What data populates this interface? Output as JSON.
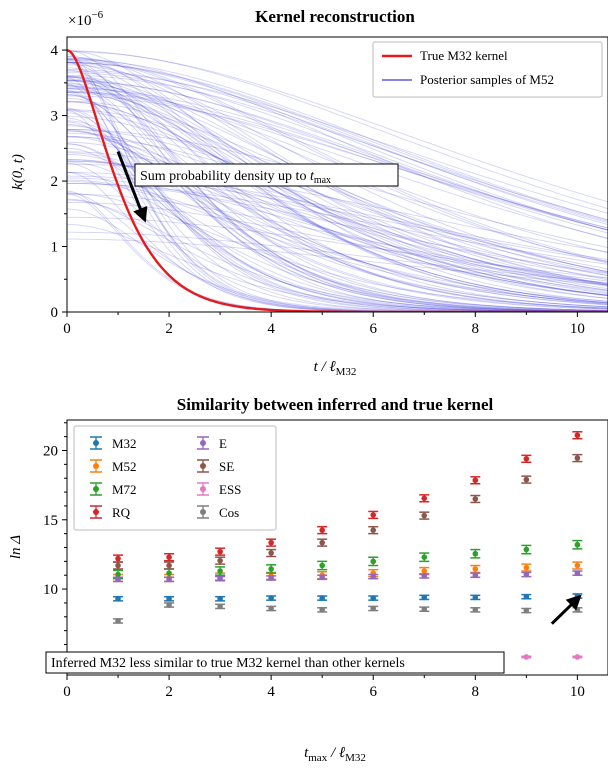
{
  "colors": {
    "true_kernel": "#e41a1c",
    "posterior": "#3b3bdc",
    "M32": "#1f77b4",
    "M52": "#ff7f0e",
    "M72": "#2ca02c",
    "RQ": "#d62728",
    "E": "#9467bd",
    "SE": "#8c564b",
    "ESS": "#e377c2",
    "Cos": "#7f7f7f"
  },
  "chart_data": [
    {
      "type": "line",
      "title": "Kernel reconstruction",
      "xlabel": "t / ℓ",
      "xlabel_sub": "M32",
      "ylabel": "k(0, t)",
      "y_multiplier": "×10",
      "y_multiplier_exp": "−6",
      "xlim": [
        0,
        10.6
      ],
      "ylim": [
        0,
        4.2
      ],
      "x_ticks": [
        "0",
        "2",
        "4",
        "6",
        "8",
        "10"
      ],
      "y_ticks": [
        "0",
        "1",
        "2",
        "3",
        "4"
      ],
      "legend_position": "top-right",
      "series": [
        {
          "name": "True M32 kernel",
          "kind": "matern32",
          "amplitude": 4.0,
          "lengthscale": 1.0
        },
        {
          "name": "Posterior samples of M52",
          "kind": "matern52_samples",
          "count": 120,
          "amplitude_range": [
            1.1,
            4.0
          ],
          "lengthscale_range": [
            1.3,
            9.0
          ]
        }
      ],
      "annotation": {
        "text": "Sum probability density up to ",
        "text_italic": "t",
        "text_sub": "max",
        "arrow_from": [
          1.0,
          2.45
        ],
        "arrow_to": [
          1.5,
          1.45
        ]
      }
    },
    {
      "type": "scatter",
      "title": "Similarity between inferred and true kernel",
      "xlabel": "t",
      "xlabel_sub1": "max",
      "xlabel_mid": " / ℓ",
      "xlabel_sub2": "M32",
      "ylabel": "ln Δ",
      "xlim": [
        0,
        10.6
      ],
      "ylim": [
        3.8,
        22.2
      ],
      "x_ticks": [
        "0",
        "2",
        "4",
        "6",
        "8",
        "10"
      ],
      "y_ticks": [
        "5",
        "10",
        "15",
        "20"
      ],
      "legend_position": "top-left",
      "x": [
        1,
        2,
        3,
        4,
        5,
        6,
        7,
        8,
        9,
        10
      ],
      "series": [
        {
          "name": "M32",
          "values": [
            9.3,
            9.3,
            9.3,
            9.35,
            9.35,
            9.35,
            9.4,
            9.4,
            9.45,
            9.5
          ],
          "err": 0.15
        },
        {
          "name": "M52",
          "values": [
            10.8,
            10.8,
            10.9,
            10.95,
            11.0,
            11.15,
            11.3,
            11.45,
            11.55,
            11.7
          ],
          "err": 0.25
        },
        {
          "name": "M72",
          "values": [
            11.05,
            11.15,
            11.3,
            11.45,
            11.7,
            12.0,
            12.3,
            12.55,
            12.85,
            13.2
          ],
          "err": 0.3
        },
        {
          "name": "RQ",
          "values": [
            12.2,
            12.3,
            12.7,
            13.35,
            14.25,
            15.35,
            16.55,
            17.85,
            19.4,
            21.1
          ],
          "err": 0.25
        },
        {
          "name": "E",
          "values": [
            10.7,
            10.7,
            10.75,
            10.8,
            10.85,
            10.9,
            10.95,
            11.0,
            11.05,
            11.15
          ],
          "err": 0.15
        },
        {
          "name": "SE",
          "values": [
            11.7,
            11.7,
            12.05,
            12.6,
            13.35,
            14.25,
            15.3,
            16.5,
            17.9,
            19.45
          ],
          "err": 0.25
        },
        {
          "name": "ESS",
          "values": [
            5.1,
            5.1,
            5.1,
            5.1,
            5.1,
            5.1,
            5.1,
            5.1,
            5.1,
            5.1
          ],
          "err": 0.05
        },
        {
          "name": "Cos",
          "values": [
            7.7,
            8.85,
            8.75,
            8.6,
            8.5,
            8.6,
            8.55,
            8.5,
            8.45,
            8.5
          ],
          "err": 0.15
        }
      ],
      "annotation": {
        "text": "Inferred M32 less similar to true M32 kernel than other kernels",
        "arrow_from": [
          9.5,
          7.5
        ],
        "arrow_to": [
          10.0,
          9.3
        ]
      }
    }
  ]
}
